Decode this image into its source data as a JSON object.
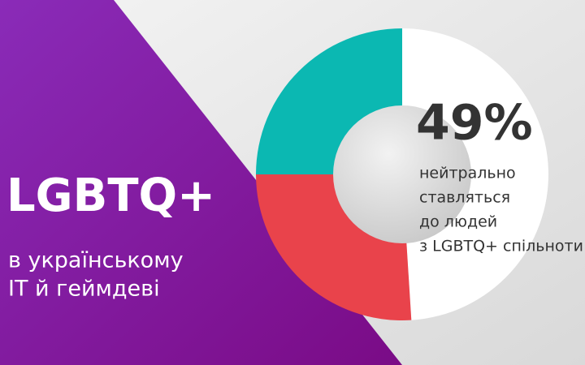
{
  "chart_data": {
    "type": "pie",
    "title": "LGBTQ+",
    "subtitle": [
      "в українському",
      "IT й геймдеві"
    ],
    "values": [
      49,
      26,
      25
    ],
    "value_labels": [
      "49%",
      null,
      null
    ],
    "colors": [
      "#ffffff",
      "#e9434b",
      "#0bb8b2"
    ],
    "annotation": [
      "нейтрально",
      "ставляться",
      "до людей",
      "з LGBTQ+ спільноти"
    ]
  }
}
